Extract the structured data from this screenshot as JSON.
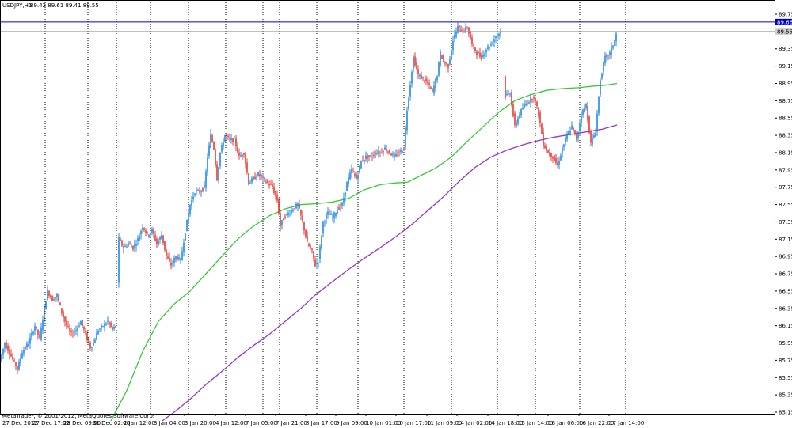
{
  "header": {
    "symbol": "USDJPY,H1",
    "ohlc": "89.42 89.61 89.41 89.55"
  },
  "copyright": "MetaTrader, © 2001-2012, MetaQuotes Software Corp.",
  "colors": {
    "bull": "#1e88e5",
    "bear": "#e53935",
    "ma_fast": "#33cc33",
    "ma_slow": "#9932cc",
    "hline": "#0000cc",
    "bid_line": "#999999"
  },
  "price_tags": {
    "hline": "89.66",
    "bid": "89.55"
  },
  "chart_data": {
    "type": "candlestick",
    "ylim": [
      85.05,
      89.85
    ],
    "y_ticks": [
      "89.75",
      "89.55",
      "89.35",
      "89.15",
      "88.95",
      "88.75",
      "88.55",
      "88.35",
      "88.15",
      "87.95",
      "87.75",
      "87.55",
      "87.35",
      "87.15",
      "86.95",
      "86.75",
      "86.55",
      "86.35",
      "86.15",
      "85.95",
      "85.75",
      "85.55",
      "85.35",
      "85.15"
    ],
    "x_labels": [
      "27 Dec 2012",
      "27 Dec 17:00",
      "28 Dec 09:00",
      "31 Dec 02:00",
      "2 Jan 12:00",
      "3 Jan 04:00",
      "3 Jan 20:00",
      "4 Jan 12:00",
      "7 Jan 05:00",
      "7 Jan 21:00",
      "8 Jan 17:00",
      "9 Jan 09:00",
      "10 Jan 01:00",
      "10 Jan 17:00",
      "11 Jan 09:00",
      "14 Jan 02:00",
      "14 Jan 18:00",
      "15 Jan 14:00",
      "16 Jan 06:00",
      "16 Jan 22:00",
      "17 Jan 14:00"
    ],
    "path_points": [
      [
        0,
        85.75
      ],
      [
        6,
        85.95
      ],
      [
        14,
        85.8
      ],
      [
        22,
        85.65
      ],
      [
        28,
        85.85
      ],
      [
        36,
        85.95
      ],
      [
        44,
        86.15
      ],
      [
        50,
        86.0
      ],
      [
        56,
        86.35
      ],
      [
        60,
        86.55
      ],
      [
        66,
        86.45
      ],
      [
        72,
        86.5
      ],
      [
        78,
        86.3
      ],
      [
        84,
        86.15
      ],
      [
        90,
        86.05
      ],
      [
        96,
        86.1
      ],
      [
        102,
        86.2
      ],
      [
        108,
        86.05
      ],
      [
        114,
        85.9
      ],
      [
        118,
        85.95
      ],
      [
        124,
        86.1
      ],
      [
        130,
        86.15
      ],
      [
        136,
        86.2
      ],
      [
        142,
        86.1
      ],
      [
        146,
        86.15
      ],
      [
        150,
        87.15
      ],
      [
        156,
        87.05
      ],
      [
        162,
        87.1
      ],
      [
        168,
        87.05
      ],
      [
        174,
        87.15
      ],
      [
        180,
        87.3
      ],
      [
        186,
        87.2
      ],
      [
        192,
        87.25
      ],
      [
        198,
        87.1
      ],
      [
        204,
        87.2
      ],
      [
        210,
        86.95
      ],
      [
        216,
        86.85
      ],
      [
        222,
        86.95
      ],
      [
        228,
        86.9
      ],
      [
        234,
        87.25
      ],
      [
        240,
        87.55
      ],
      [
        246,
        87.7
      ],
      [
        252,
        87.7
      ],
      [
        258,
        87.75
      ],
      [
        262,
        88.1
      ],
      [
        266,
        88.35
      ],
      [
        270,
        88.2
      ],
      [
        274,
        87.85
      ],
      [
        278,
        88.15
      ],
      [
        284,
        88.35
      ],
      [
        290,
        88.3
      ],
      [
        296,
        88.3
      ],
      [
        302,
        88.1
      ],
      [
        308,
        88.15
      ],
      [
        314,
        87.8
      ],
      [
        320,
        87.85
      ],
      [
        326,
        87.9
      ],
      [
        332,
        87.85
      ],
      [
        338,
        87.8
      ],
      [
        344,
        87.75
      ],
      [
        350,
        87.6
      ],
      [
        354,
        87.3
      ],
      [
        358,
        87.4
      ],
      [
        364,
        87.45
      ],
      [
        370,
        87.5
      ],
      [
        376,
        87.55
      ],
      [
        382,
        87.35
      ],
      [
        388,
        87.1
      ],
      [
        394,
        87.0
      ],
      [
        398,
        86.85
      ],
      [
        402,
        86.9
      ],
      [
        408,
        87.35
      ],
      [
        414,
        87.45
      ],
      [
        420,
        87.4
      ],
      [
        426,
        87.5
      ],
      [
        432,
        87.55
      ],
      [
        438,
        87.8
      ],
      [
        444,
        87.95
      ],
      [
        450,
        87.85
      ],
      [
        456,
        88.05
      ],
      [
        462,
        88.1
      ],
      [
        468,
        88.1
      ],
      [
        474,
        88.15
      ],
      [
        480,
        88.15
      ],
      [
        486,
        88.2
      ],
      [
        492,
        88.15
      ],
      [
        498,
        88.1
      ],
      [
        504,
        88.15
      ],
      [
        510,
        88.2
      ],
      [
        514,
        88.65
      ],
      [
        518,
        88.95
      ],
      [
        522,
        89.25
      ],
      [
        528,
        89.05
      ],
      [
        534,
        89.0
      ],
      [
        540,
        88.95
      ],
      [
        546,
        88.85
      ],
      [
        552,
        89.05
      ],
      [
        556,
        89.3
      ],
      [
        560,
        89.2
      ],
      [
        566,
        89.15
      ],
      [
        572,
        89.45
      ],
      [
        578,
        89.6
      ],
      [
        584,
        89.55
      ],
      [
        590,
        89.6
      ],
      [
        596,
        89.4
      ],
      [
        602,
        89.3
      ],
      [
        608,
        89.25
      ],
      [
        614,
        89.35
      ],
      [
        620,
        89.4
      ],
      [
        626,
        89.5
      ],
      [
        632,
        89.55
      ],
      [
        638,
        88.8
      ],
      [
        644,
        88.85
      ],
      [
        650,
        88.45
      ],
      [
        656,
        88.6
      ],
      [
        662,
        88.7
      ],
      [
        668,
        88.75
      ],
      [
        674,
        88.8
      ],
      [
        680,
        88.6
      ],
      [
        686,
        88.25
      ],
      [
        692,
        88.15
      ],
      [
        698,
        88.1
      ],
      [
        704,
        88.0
      ],
      [
        710,
        88.2
      ],
      [
        716,
        88.35
      ],
      [
        722,
        88.45
      ],
      [
        728,
        88.3
      ],
      [
        734,
        88.6
      ],
      [
        740,
        88.7
      ],
      [
        746,
        88.25
      ],
      [
        752,
        88.4
      ],
      [
        758,
        89.0
      ],
      [
        764,
        89.25
      ],
      [
        770,
        89.3
      ],
      [
        776,
        89.45
      ],
      [
        779,
        89.55
      ]
    ],
    "ma_fast": [
      [
        140,
        85.05
      ],
      [
        160,
        85.4
      ],
      [
        180,
        85.85
      ],
      [
        200,
        86.2
      ],
      [
        220,
        86.4
      ],
      [
        240,
        86.55
      ],
      [
        260,
        86.75
      ],
      [
        280,
        86.95
      ],
      [
        300,
        87.15
      ],
      [
        320,
        87.3
      ],
      [
        340,
        87.42
      ],
      [
        360,
        87.5
      ],
      [
        380,
        87.55
      ],
      [
        400,
        87.56
      ],
      [
        420,
        87.58
      ],
      [
        440,
        87.62
      ],
      [
        460,
        87.72
      ],
      [
        480,
        87.78
      ],
      [
        500,
        87.8
      ],
      [
        515,
        87.81
      ],
      [
        530,
        87.88
      ],
      [
        550,
        87.97
      ],
      [
        570,
        88.1
      ],
      [
        590,
        88.28
      ],
      [
        610,
        88.45
      ],
      [
        630,
        88.62
      ],
      [
        650,
        88.75
      ],
      [
        670,
        88.82
      ],
      [
        690,
        88.87
      ],
      [
        710,
        88.89
      ],
      [
        730,
        88.9
      ],
      [
        750,
        88.92
      ],
      [
        765,
        88.93
      ],
      [
        779,
        88.95
      ]
    ],
    "ma_slow": [
      [
        205,
        85.05
      ],
      [
        220,
        85.15
      ],
      [
        240,
        85.3
      ],
      [
        260,
        85.47
      ],
      [
        280,
        85.62
      ],
      [
        300,
        85.78
      ],
      [
        320,
        85.92
      ],
      [
        340,
        86.05
      ],
      [
        360,
        86.2
      ],
      [
        380,
        86.35
      ],
      [
        400,
        86.52
      ],
      [
        420,
        86.66
      ],
      [
        440,
        86.8
      ],
      [
        460,
        86.93
      ],
      [
        480,
        87.05
      ],
      [
        500,
        87.18
      ],
      [
        520,
        87.32
      ],
      [
        540,
        87.48
      ],
      [
        560,
        87.64
      ],
      [
        580,
        87.82
      ],
      [
        600,
        87.98
      ],
      [
        620,
        88.1
      ],
      [
        640,
        88.18
      ],
      [
        660,
        88.24
      ],
      [
        680,
        88.29
      ],
      [
        700,
        88.33
      ],
      [
        720,
        88.36
      ],
      [
        740,
        88.39
      ],
      [
        760,
        88.42
      ],
      [
        779,
        88.47
      ]
    ]
  }
}
